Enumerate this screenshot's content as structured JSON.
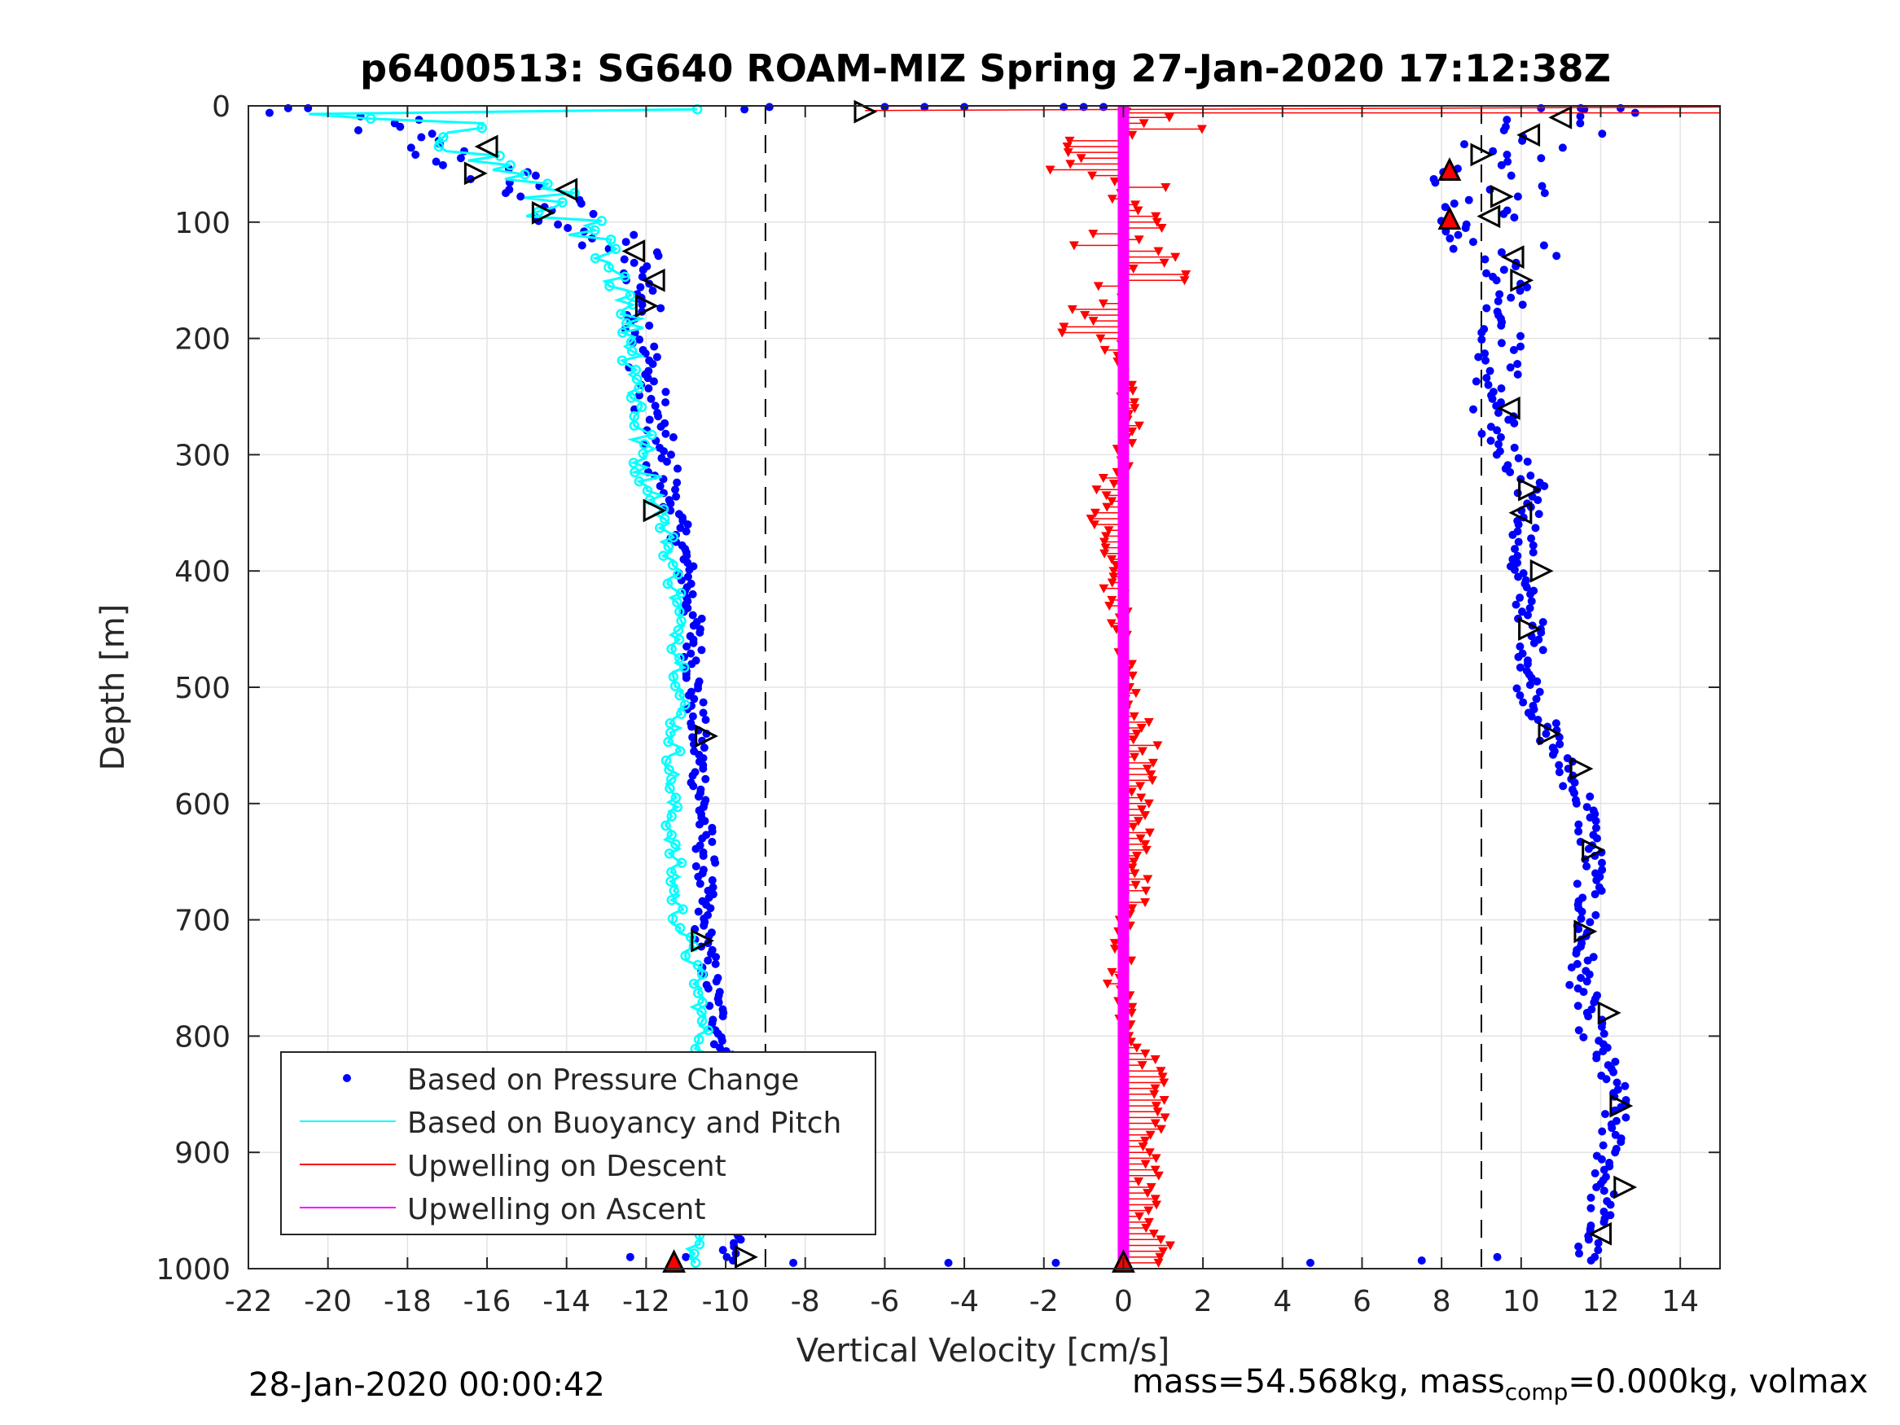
{
  "chart_data": {
    "type": "scatter",
    "title": "p6400513: SG640 ROAM-MIZ Spring 27-Jan-2020 17:12:38Z",
    "xlabel": "Vertical Velocity [cm/s]",
    "ylabel": "Depth [m]",
    "xlim": [
      -22,
      15
    ],
    "ylim": [
      0,
      1000
    ],
    "y_reversed": true,
    "grid": true,
    "legend_position": "bottom-left",
    "x_ticks": [
      "-22",
      "-20",
      "-18",
      "-16",
      "-14",
      "-12",
      "-10",
      "-8",
      "-6",
      "-4",
      "-2",
      "0",
      "2",
      "4",
      "6",
      "8",
      "10",
      "12",
      "14"
    ],
    "y_ticks": [
      "0",
      "100",
      "200",
      "300",
      "400",
      "500",
      "600",
      "700",
      "800",
      "900",
      "1000"
    ],
    "reference_lines_x": [
      -9,
      9
    ],
    "series": [
      {
        "name": "Based on Pressure Change",
        "color": "#0000ff",
        "descent_profile": [
          [
            -21.5,
            5
          ],
          [
            -19,
            10
          ],
          [
            -18,
            30
          ],
          [
            -17.2,
            40
          ],
          [
            -16.5,
            50
          ],
          [
            -15.6,
            60
          ],
          [
            -15,
            75
          ],
          [
            -14.2,
            90
          ],
          [
            -13.5,
            110
          ],
          [
            -12.4,
            130
          ],
          [
            -12,
            160
          ],
          [
            -12.1,
            200
          ],
          [
            -11.9,
            250
          ],
          [
            -11.7,
            300
          ],
          [
            -11.2,
            360
          ],
          [
            -11,
            400
          ],
          [
            -10.8,
            450
          ],
          [
            -10.8,
            500
          ],
          [
            -10.7,
            550
          ],
          [
            -10.6,
            600
          ],
          [
            -10.5,
            650
          ],
          [
            -10.6,
            700
          ],
          [
            -10.4,
            750
          ],
          [
            -10.1,
            800
          ],
          [
            -9.9,
            850
          ],
          [
            -9.8,
            900
          ],
          [
            -9.8,
            950
          ],
          [
            -9.9,
            990
          ]
        ],
        "ascent_profile": [
          [
            11.2,
            10
          ],
          [
            10.2,
            30
          ],
          [
            8.6,
            50
          ],
          [
            9.5,
            70
          ],
          [
            9.3,
            100
          ],
          [
            9.6,
            130
          ],
          [
            9.8,
            160
          ],
          [
            9.5,
            200
          ],
          [
            9.3,
            250
          ],
          [
            9.5,
            300
          ],
          [
            10.3,
            340
          ],
          [
            9.9,
            400
          ],
          [
            10.3,
            450
          ],
          [
            10.2,
            500
          ],
          [
            10.8,
            550
          ],
          [
            11.6,
            600
          ],
          [
            11.8,
            650
          ],
          [
            11.6,
            700
          ],
          [
            11.5,
            750
          ],
          [
            11.8,
            800
          ],
          [
            12.4,
            850
          ],
          [
            12.2,
            900
          ],
          [
            12.0,
            950
          ],
          [
            11.6,
            990
          ]
        ]
      },
      {
        "name": "Based on Buoyancy and Pitch",
        "color": "#00ffff",
        "profile": [
          [
            -22,
            5
          ],
          [
            -17,
            15
          ],
          [
            -16.5,
            30
          ],
          [
            -16.2,
            45
          ],
          [
            -15,
            65
          ],
          [
            -14.3,
            85
          ],
          [
            -13.8,
            110
          ],
          [
            -13.2,
            135
          ],
          [
            -12.4,
            160
          ],
          [
            -12.3,
            200
          ],
          [
            -12.2,
            250
          ],
          [
            -12.1,
            300
          ],
          [
            -11.6,
            350
          ],
          [
            -11.3,
            400
          ],
          [
            -11.2,
            450
          ],
          [
            -11.1,
            500
          ],
          [
            -11.3,
            550
          ],
          [
            -11.4,
            600
          ],
          [
            -11.3,
            650
          ],
          [
            -11.2,
            700
          ],
          [
            -10.7,
            750
          ],
          [
            -10.6,
            800
          ],
          [
            -10.5,
            850
          ],
          [
            -10.7,
            900
          ],
          [
            -10.7,
            950
          ],
          [
            -10.8,
            990
          ]
        ]
      },
      {
        "name": "Upwelling on Descent",
        "color": "#ff0000",
        "profile": [
          [
            -1.5,
            30
          ],
          [
            -2.2,
            50
          ],
          [
            0.8,
            70
          ],
          [
            -1.3,
            80
          ],
          [
            1.5,
            95
          ],
          [
            -0.6,
            120
          ],
          [
            1.2,
            140
          ],
          [
            -1,
            175
          ],
          [
            -0.4,
            200
          ],
          [
            0.2,
            250
          ],
          [
            0.1,
            300
          ],
          [
            -0.7,
            350
          ],
          [
            -0.3,
            400
          ],
          [
            -0.1,
            450
          ],
          [
            0.1,
            500
          ],
          [
            0.6,
            550
          ],
          [
            0.4,
            600
          ],
          [
            0.5,
            650
          ],
          [
            0.2,
            700
          ],
          [
            -0.2,
            750
          ],
          [
            0.3,
            800
          ],
          [
            0.9,
            850
          ],
          [
            0.7,
            900
          ],
          [
            0.6,
            950
          ],
          [
            1.0,
            990
          ]
        ]
      },
      {
        "name": "Upwelling on Ascent",
        "color": "#ff00ff",
        "profile": [
          [
            0,
            0
          ],
          [
            0,
            1000
          ]
        ]
      }
    ]
  }
}
